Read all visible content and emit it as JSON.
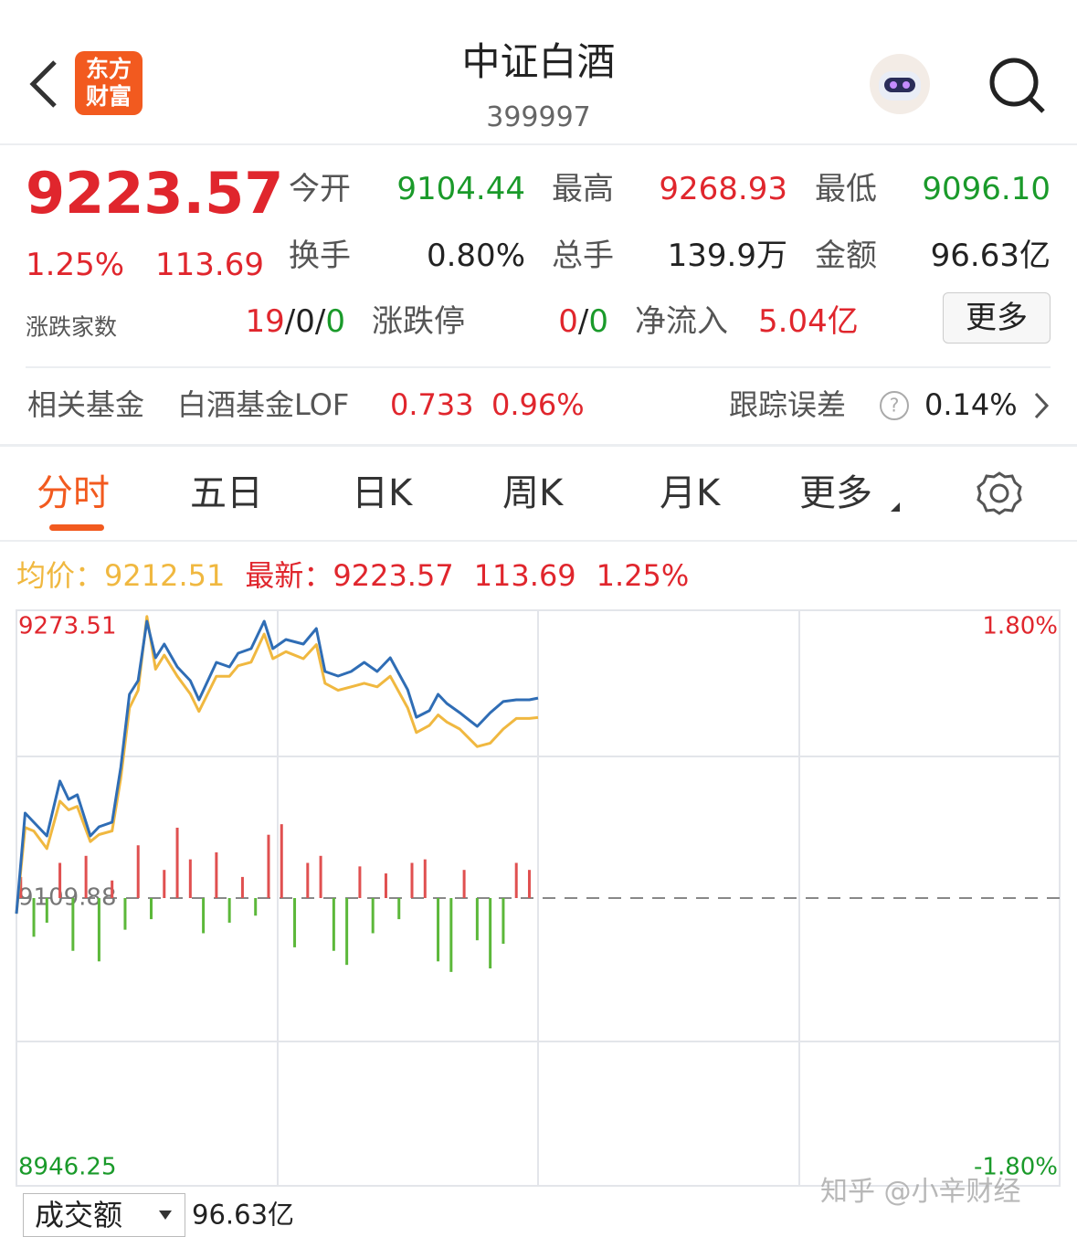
{
  "header": {
    "title": "中证白酒",
    "code": "399997",
    "logo": [
      "东方",
      "财富"
    ]
  },
  "quote": {
    "price": "9223.57",
    "change_pct": "1.25%",
    "change": "113.69",
    "fields": [
      {
        "label": "今开",
        "value": "9104.44"
      },
      {
        "label": "最高",
        "value": "9268.93"
      },
      {
        "label": "最低",
        "value": "9096.10"
      },
      {
        "label": "换手",
        "value": "0.80%"
      },
      {
        "label": "总手",
        "value": "139.9万"
      },
      {
        "label": "金额",
        "value": "96.63亿"
      }
    ],
    "breadth": {
      "label": "涨跌家数",
      "up": "19",
      "flat": "0",
      "down": "0",
      "sep": "/"
    },
    "limit": {
      "label": "涨跌停",
      "up": "0",
      "down": "0",
      "sep": "/"
    },
    "net_inflow": {
      "label": "净流入",
      "value": "5.04亿"
    },
    "more": "更多"
  },
  "fund": {
    "label": "相关基金",
    "name": "白酒基金LOF",
    "price": "0.733",
    "pct": "0.96%",
    "tracking_label": "跟踪误差",
    "tracking": "0.14%"
  },
  "tabs": [
    "分时",
    "五日",
    "日K",
    "周K",
    "月K",
    "更多"
  ],
  "info": {
    "avg_label": "均价：",
    "avg": "9212.51",
    "last_label": "最新：",
    "last": "9223.57",
    "change": "113.69",
    "pct": "1.25%"
  },
  "chart_data": {
    "type": "line",
    "x": [
      0,
      2,
      4,
      7,
      10,
      12,
      14,
      17,
      19,
      22,
      24,
      26,
      28,
      30,
      32,
      34,
      37,
      40,
      42,
      46,
      49,
      51,
      54,
      57,
      59,
      62,
      66,
      69,
      71,
      74,
      77,
      80,
      83,
      86,
      90,
      92,
      95,
      97,
      99,
      102,
      106,
      109,
      112,
      115,
      118,
      120
    ],
    "xlim": [
      0,
      240
    ],
    "series": [
      {
        "color": "#2f6db5",
        "values": [
          9101.0,
          9158.2,
          9153.0,
          9145.2,
          9176.4,
          9166.0,
          9168.6,
          9145.2,
          9150.4,
          9153.0,
          9184.1,
          9225.7,
          9233.5,
          9267.3,
          9246.5,
          9254.3,
          9241.3,
          9233.5,
          9222.6,
          9243.9,
          9241.3,
          9249.1,
          9251.7,
          9267.3,
          9251.7,
          9256.9,
          9254.3,
          9263.1,
          9238.7,
          9236.1,
          9238.7,
          9243.9,
          9238.7,
          9246.5,
          9228.3,
          9212.7,
          9216.4,
          9225.7,
          9220.5,
          9215.3,
          9207.5,
          9215.3,
          9221.6,
          9222.6,
          9222.6,
          9223.57
        ]
      },
      {
        "color": "#f0b840",
        "values": [
          9101,
          9150,
          9148,
          9138,
          9165,
          9160,
          9162,
          9142,
          9146,
          9148,
          9178,
          9218,
          9228,
          9270,
          9240,
          9248,
          9236,
          9226,
          9216,
          9236,
          9236,
          9242,
          9244,
          9260,
          9246,
          9250,
          9246,
          9254,
          9232,
          9228,
          9230,
          9232,
          9230,
          9236,
          9218,
          9204,
          9208,
          9214,
          9210,
          9206,
          9196,
          9198,
          9206,
          9212,
          9212,
          9212.51
        ]
      }
    ],
    "bars": {
      "up_color": "#e05050",
      "down_color": "#5cb83a",
      "x": [
        1,
        4,
        7,
        10,
        13,
        16,
        19,
        22,
        25,
        28,
        31,
        34,
        37,
        40,
        43,
        46,
        49,
        52,
        55,
        58,
        61,
        64,
        67,
        70,
        73,
        76,
        79,
        82,
        85,
        88,
        91,
        94,
        97,
        100,
        103,
        106,
        109,
        112,
        115,
        118
      ],
      "values": [
        12,
        -22,
        -14,
        20,
        -30,
        24,
        -36,
        10,
        -18,
        30,
        -12,
        16,
        40,
        22,
        -20,
        26,
        -14,
        12,
        -10,
        36,
        42,
        -28,
        20,
        24,
        -30,
        -38,
        18,
        -20,
        14,
        -12,
        20,
        22,
        -36,
        -42,
        16,
        -24,
        -40,
        -26,
        20,
        16
      ]
    },
    "ylim": [
      8946.25,
      9273.51
    ],
    "yticks": [
      8946.25,
      9109.88,
      9273.51
    ],
    "y2lim": [
      -1.8,
      1.8
    ],
    "y2ticks": [
      {
        "value": -1.8,
        "label": "-1.80%"
      },
      {
        "value": 1.8,
        "label": "1.80%"
      }
    ]
  },
  "footer": {
    "selector": "成交额",
    "value": "96.63亿"
  },
  "watermark": "知乎 @小辛财经"
}
